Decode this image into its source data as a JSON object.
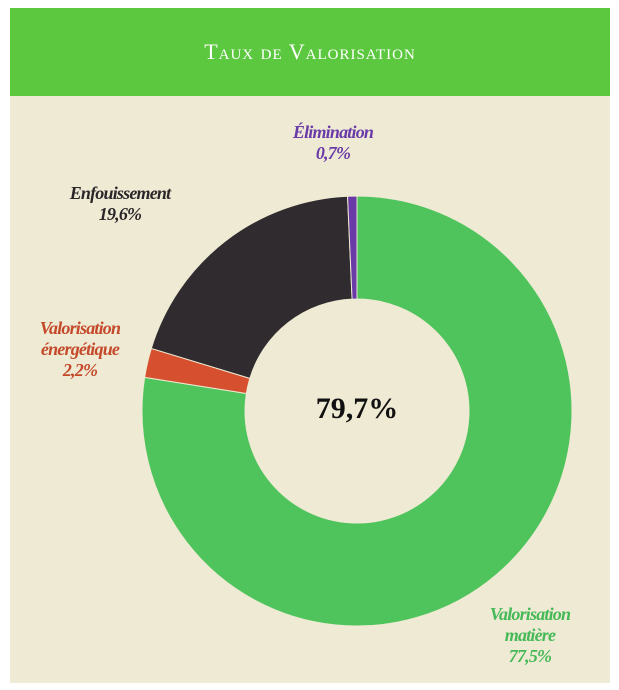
{
  "chart_data": {
    "type": "donut",
    "title": "Taux de Valorisation",
    "categories": [
      "Valorisation matière",
      "Valorisation énergétique",
      "Enfouissement",
      "Élimination"
    ],
    "values": [
      77.5,
      2.2,
      19.6,
      0.7
    ],
    "value_labels": [
      "77,5%",
      "2,2%",
      "19,6%",
      "0,7%"
    ],
    "colors": [
      "#4fc45d",
      "#d6502f",
      "#2f2b2f",
      "#6a3aa8"
    ],
    "label_colors": [
      "#45b957",
      "#c4492b",
      "#2a262a",
      "#6a3aa8"
    ],
    "center_label": "79,7%"
  }
}
